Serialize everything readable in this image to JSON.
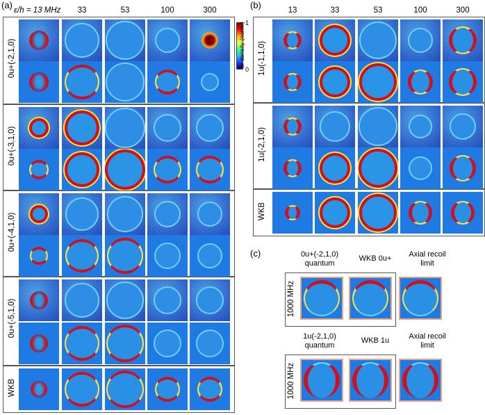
{
  "panels": {
    "a": "(a)",
    "b": "(b)",
    "c": "(c)"
  },
  "a_header": {
    "axis_label": "ε/h = 13 MHz",
    "cols": [
      "33",
      "53",
      "100",
      "300"
    ]
  },
  "b_header": {
    "cols": [
      "13",
      "33",
      "53",
      "100",
      "300"
    ]
  },
  "a_rows": [
    {
      "label": "0u+(-2,1,0)"
    },
    {
      "label": "0u+(-3,1,0)"
    },
    {
      "label": "0u+(-4,1,0)"
    },
    {
      "label": "0u+(-5,1,0)"
    }
  ],
  "b_rows": [
    {
      "label": "1u(-1,1,0)"
    },
    {
      "label": "1u(-2,1,0)"
    }
  ],
  "wkb_label": "WKB",
  "colorbar": {
    "label": "Sr density (norm.)",
    "max": "1",
    "min": "0"
  },
  "c_panel": {
    "row1": {
      "head1": "0u+(-2,1,0)",
      "head1b": "quantum",
      "head2": "WKB 0u+",
      "head3": "Axial recoil",
      "head3b": "limit",
      "side": "1000 MHz"
    },
    "row2": {
      "head1": "1u(-2,1,0)",
      "head1b": "quantum",
      "head2": "WKB 1u",
      "head3": "Axial recoil",
      "head3b": "limit",
      "side": "1000 MHz"
    }
  },
  "colors": {
    "bg_blue": "#1f7be3",
    "ring_red": "#d0101a",
    "ring_yellow": "#ffe040",
    "frame_orange": "#e8a585"
  }
}
